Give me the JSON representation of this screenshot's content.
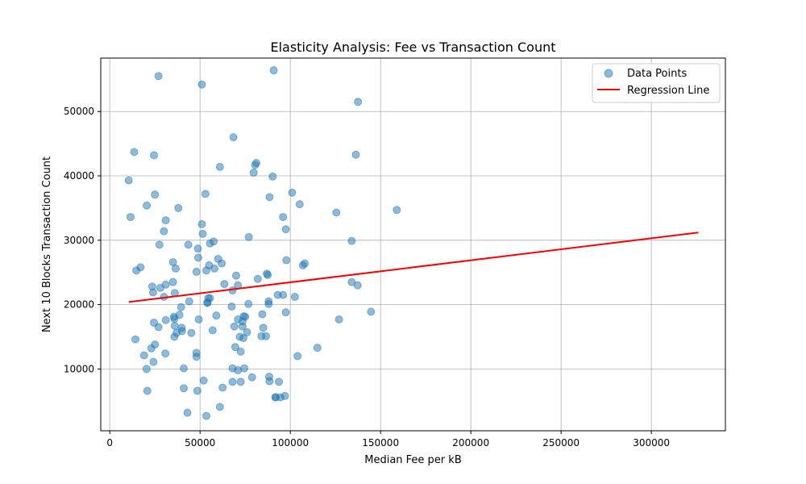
{
  "chart_data": {
    "type": "scatter",
    "title": "Elasticity Analysis: Fee vs Transaction Count",
    "xlabel": "Median Fee per kB",
    "ylabel": "Next 10 Blocks Transaction Count",
    "xlim": [
      -5000,
      341000
    ],
    "ylim": [
      400,
      58300
    ],
    "xticks": [
      0,
      50000,
      100000,
      150000,
      200000,
      250000,
      300000
    ],
    "xtick_labels": [
      "0",
      "50000",
      "100000",
      "150000",
      "200000",
      "250000",
      "300000"
    ],
    "yticks": [
      10000,
      20000,
      30000,
      40000,
      50000
    ],
    "ytick_labels": [
      "10000",
      "20000",
      "30000",
      "40000",
      "50000"
    ],
    "grid": true,
    "legend_position": "top-right",
    "colors": {
      "points": "#1f77b4",
      "regression": "#ff0000",
      "grid": "#b0b0b0"
    },
    "series": [
      {
        "name": "Data Points",
        "kind": "scatter",
        "x": [
          27000,
          51000,
          90800,
          68500,
          137500,
          13500,
          24500,
          136300,
          79700,
          81200,
          80500,
          90200,
          61000,
          10500,
          25000,
          53000,
          101000,
          88500,
          20500,
          105200,
          38000,
          11500,
          159000,
          125500,
          31000,
          51000,
          96000,
          97500,
          30000,
          51500,
          77000,
          57500,
          43500,
          55500,
          27500,
          134000,
          48800,
          17000,
          14700,
          36500,
          35000,
          60000,
          62000,
          55000,
          97800,
          58000,
          108000,
          107000,
          49000,
          68000,
          87000,
          48000,
          53500,
          54000,
          134000,
          137300,
          82000,
          63500,
          31000,
          35000,
          87500,
          23500,
          28000,
          36000,
          24000,
          67500,
          96000,
          93000,
          55500,
          102500,
          71000,
          88000,
          54500,
          30000,
          76800,
          44000,
          39500,
          88000,
          38600,
          70000,
          54200,
          59000,
          144700,
          97500,
          84500,
          127000,
          35800,
          24500,
          35500,
          71000,
          36000,
          73500,
          75000,
          74200,
          31000,
          27000,
          39800,
          40000,
          49300,
          69000,
          73500,
          85000,
          37000,
          57000,
          45200,
          35800,
          76000,
          84000,
          86500,
          14200,
          72000,
          74000,
          25000,
          115000,
          69500,
          72500,
          30800,
          19000,
          48000,
          23000,
          104000,
          48000,
          24200,
          88500,
          68000,
          74500,
          41000,
          71000,
          20400,
          78800,
          93700,
          88300,
          72500,
          68000,
          52000,
          94500,
          41000,
          62500,
          20800,
          48500,
          97000,
          91700,
          61000,
          43000,
          53500,
          92000
        ],
        "y": [
          55500,
          54200,
          56400,
          46000,
          51500,
          43700,
          43200,
          43300,
          40500,
          42000,
          41700,
          39900,
          41400,
          39300,
          37100,
          37200,
          37400,
          36700,
          35400,
          35600,
          35000,
          33600,
          34700,
          34300,
          33100,
          32500,
          33600,
          31700,
          31400,
          31000,
          30500,
          29800,
          29300,
          29500,
          29300,
          29900,
          28700,
          25800,
          25300,
          25600,
          26600,
          27100,
          26400,
          26100,
          26900,
          25600,
          26400,
          26100,
          27300,
          22200,
          24800,
          25100,
          25300,
          20300,
          23500,
          23000,
          24000,
          23200,
          23100,
          23500,
          24600,
          22800,
          22600,
          21800,
          21900,
          19700,
          21500,
          21500,
          21000,
          21200,
          23000,
          20500,
          21000,
          21200,
          20100,
          20500,
          19600,
          20100,
          18400,
          24500,
          20300,
          18300,
          18900,
          18800,
          18500,
          17700,
          17800,
          17200,
          18100,
          17700,
          16700,
          17400,
          18100,
          18200,
          17600,
          16500,
          16400,
          15900,
          17700,
          16600,
          16600,
          16400,
          15600,
          16000,
          15600,
          15000,
          15700,
          15100,
          15100,
          14600,
          15000,
          14800,
          13800,
          13300,
          13400,
          12700,
          12400,
          12100,
          12500,
          13200,
          12000,
          11900,
          11100,
          8100,
          10100,
          10100,
          10100,
          9800,
          10000,
          8700,
          8000,
          8800,
          8000,
          8000,
          8200,
          5600,
          7000,
          7100,
          6600,
          6600,
          5800,
          5600,
          4100,
          3200,
          2700,
          5600
        ]
      },
      {
        "name": "Regression Line",
        "kind": "line",
        "x": [
          10500,
          326000
        ],
        "y": [
          20400,
          31200
        ]
      }
    ]
  }
}
